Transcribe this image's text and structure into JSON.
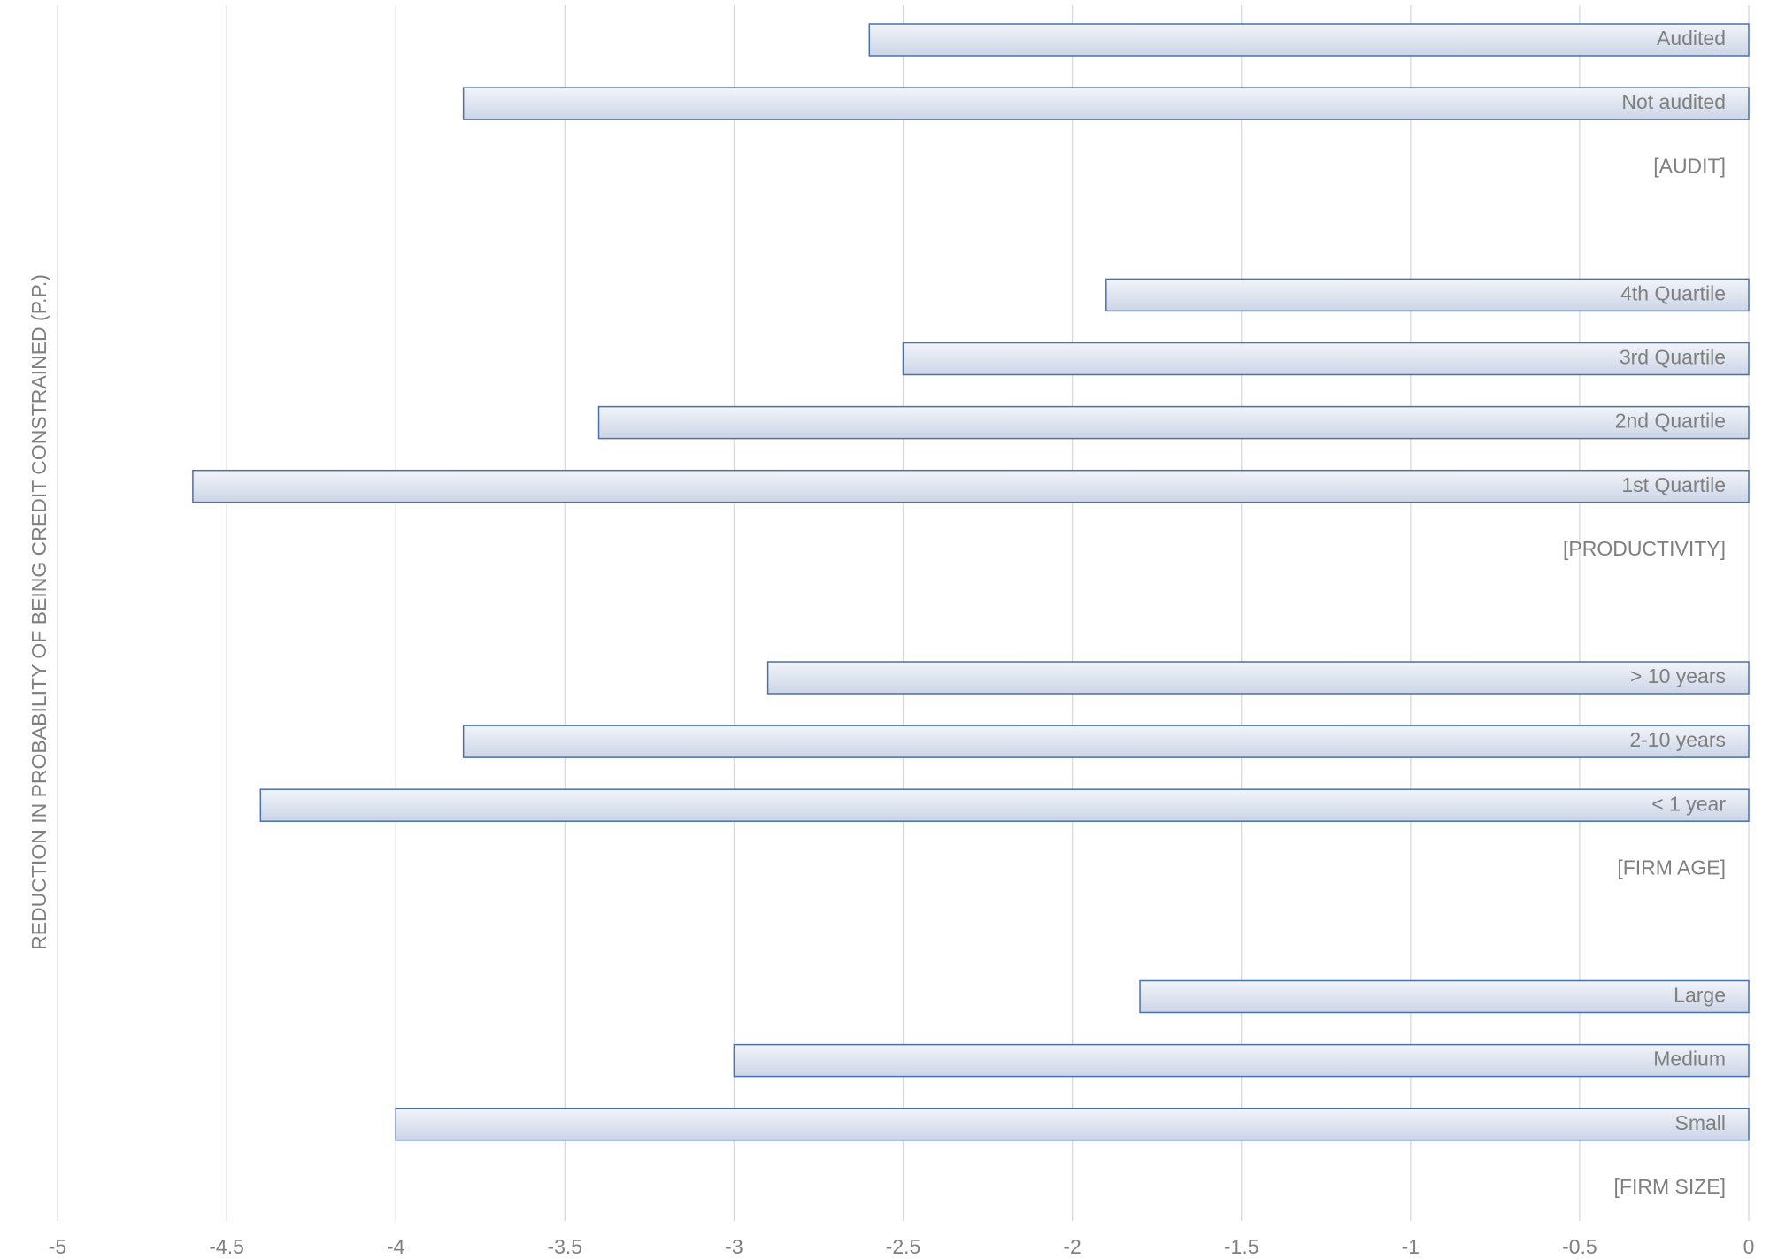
{
  "chart_data": {
    "type": "hbar",
    "y_axis_label": "REDUCTION IN PROBABILITY OF BEING CREDIT CONSTRAINED (P.P.)",
    "categories": [
      "Audited",
      "Not audited",
      "[AUDIT]",
      null,
      "4th Quartile",
      "3rd Quartile",
      "2nd Quartile",
      "1st Quartile",
      "[PRODUCTIVITY]",
      null,
      "> 10 years",
      "2-10 years",
      "< 1 year",
      "[FIRM AGE]",
      null,
      "Large",
      "Medium",
      "Small",
      "[FIRM SIZE]"
    ],
    "values": [
      -2.6,
      -3.8,
      null,
      null,
      -1.9,
      -2.5,
      -3.4,
      -4.6,
      null,
      null,
      -2.9,
      -3.8,
      -4.4,
      null,
      null,
      -1.8,
      -3.0,
      -4.0,
      null
    ],
    "color": "#dce2ee",
    "edge_color": "#4a70ae",
    "xlim": [
      -5,
      0
    ],
    "xticks": [
      -5,
      -4.5,
      -4,
      -3.5,
      -3,
      -2.5,
      -2,
      -1.5,
      -1,
      -0.5,
      0
    ],
    "grid": true
  }
}
